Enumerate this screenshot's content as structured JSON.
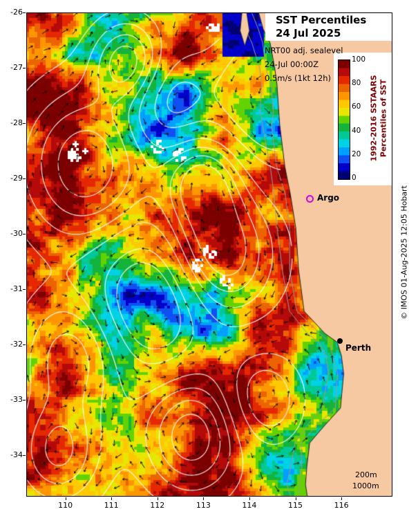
{
  "title": {
    "line1": "SST Percentiles",
    "line2": "24 Jul 2025"
  },
  "info": {
    "line1": "NRT00 adj. sealevel",
    "line2": "24-Jul 00:00Z",
    "line3": "0.5m/s (1kt 12h)"
  },
  "colorbar": {
    "ticks": [
      "100",
      "80",
      "60",
      "40",
      "20",
      "0"
    ],
    "label_line1": "1992-2016 SSTAARS",
    "label_line2": "Percentiles of SST",
    "palette": [
      "#000073",
      "#0000c8",
      "#1050f0",
      "#00a0ff",
      "#00d2e6",
      "#00c896",
      "#14b43c",
      "#64d200",
      "#e6e600",
      "#ffc800",
      "#ff9600",
      "#eb6400",
      "#e62800",
      "#b40a0a",
      "#7d0000"
    ]
  },
  "axes": {
    "x_ticks": [
      "110",
      "111",
      "112",
      "113",
      "114",
      "115",
      "116"
    ],
    "y_ticks": [
      "-26",
      "-27",
      "-28",
      "-29",
      "-30",
      "-31",
      "-32",
      "-33",
      "-34"
    ]
  },
  "markers": {
    "argo_label": "Argo",
    "perth_label": "Perth"
  },
  "depth": {
    "line1": "200m",
    "line2": "1000m"
  },
  "credit": "© IMOS 01-Aug-2025 12:05 Hobart",
  "map": {
    "lon_range": [
      109.15,
      117.11
    ],
    "lat_range": [
      -34.75,
      -26.0
    ],
    "land_color": "#f6c9a2",
    "isobath_color": "#9a9a9a",
    "isobath_offsets": [
      10,
      24
    ],
    "grid": {
      "lons": [
        109.15,
        109.87,
        110.6,
        111.32,
        112.04,
        112.77,
        113.49,
        114.21,
        114.94,
        115.66,
        116.38,
        117.11
      ],
      "lats": [
        -26.0,
        -26.73,
        -27.46,
        -28.19,
        -28.92,
        -29.65,
        -30.38,
        -31.1,
        -31.83,
        -32.56,
        -33.29,
        -34.02,
        -34.75
      ],
      "values": [
        [
          95,
          72,
          48,
          42,
          68,
          88,
          70,
          45,
          25,
          40,
          40,
          40
        ],
        [
          90,
          74,
          40,
          42,
          74,
          94,
          68,
          48,
          18,
          35,
          35,
          35
        ],
        [
          96,
          88,
          70,
          58,
          32,
          22,
          68,
          56,
          15,
          30,
          30,
          30
        ],
        [
          88,
          96,
          76,
          48,
          22,
          34,
          62,
          10,
          8,
          28,
          28,
          28
        ],
        [
          94,
          92,
          84,
          66,
          34,
          46,
          38,
          66,
          82,
          40,
          40,
          40
        ],
        [
          95,
          86,
          70,
          64,
          76,
          96,
          94,
          86,
          88,
          60,
          60,
          60
        ],
        [
          85,
          72,
          50,
          62,
          84,
          97,
          97,
          84,
          92,
          70,
          70,
          70
        ],
        [
          70,
          60,
          36,
          10,
          4,
          20,
          34,
          62,
          93,
          80,
          80,
          80
        ],
        [
          62,
          84,
          66,
          34,
          44,
          30,
          48,
          88,
          94,
          45,
          45,
          45
        ],
        [
          70,
          88,
          72,
          58,
          70,
          86,
          95,
          84,
          60,
          30,
          30,
          30
        ],
        [
          92,
          95,
          70,
          50,
          62,
          88,
          97,
          74,
          46,
          28,
          28,
          28
        ],
        [
          90,
          75,
          58,
          52,
          72,
          96,
          86,
          58,
          44,
          65,
          65,
          65
        ],
        [
          88,
          72,
          55,
          60,
          74,
          92,
          88,
          55,
          42,
          55,
          55,
          55
        ]
      ]
    },
    "coastline": [
      [
        114.2,
        -26.0
      ],
      [
        114.3,
        -26.3
      ],
      [
        114.45,
        -26.55
      ],
      [
        114.55,
        -27.0
      ],
      [
        114.6,
        -27.3
      ],
      [
        114.64,
        -27.8
      ],
      [
        114.66,
        -28.03
      ],
      [
        114.77,
        -28.78
      ],
      [
        114.89,
        -29.28
      ],
      [
        115.01,
        -29.9
      ],
      [
        115.07,
        -30.65
      ],
      [
        115.19,
        -31.4
      ],
      [
        115.64,
        -31.8
      ],
      [
        115.91,
        -31.96
      ],
      [
        116.0,
        -32.2
      ],
      [
        116.05,
        -32.53
      ],
      [
        115.98,
        -33.15
      ],
      [
        115.64,
        -33.46
      ],
      [
        115.31,
        -33.78
      ],
      [
        115.25,
        -34.2
      ],
      [
        115.22,
        -34.53
      ],
      [
        115.26,
        -34.75
      ]
    ],
    "bay_region": {
      "lon_min": 113.42,
      "lon_max": 114.32,
      "lat_south": -26.78
    },
    "bay_peninsula": [
      [
        113.84,
        -26.0
      ],
      [
        113.94,
        -26.0
      ],
      [
        114.0,
        -26.33
      ],
      [
        113.9,
        -26.6
      ],
      [
        113.8,
        -26.33
      ]
    ],
    "contour_bumps": [
      [
        111.35,
        -26.9,
        1.3,
        0.5
      ],
      [
        110.45,
        -28.75,
        1.35,
        0.95
      ],
      [
        113.0,
        -29.05,
        1.2,
        0.55
      ],
      [
        113.35,
        -30.35,
        1.45,
        0.8
      ],
      [
        110.15,
        -32.2,
        1.0,
        0.75
      ],
      [
        109.85,
        -33.95,
        1.15,
        0.65
      ],
      [
        112.75,
        -33.65,
        1.35,
        0.7
      ],
      [
        114.5,
        -27.5,
        -1.0,
        0.9
      ],
      [
        111.9,
        -31.2,
        -1.1,
        0.85
      ],
      [
        114.3,
        -33.0,
        -0.8,
        0.6
      ],
      [
        112.2,
        -27.6,
        -0.7,
        0.6
      ]
    ],
    "contour_levels": [
      -0.5,
      -0.25,
      0.2,
      0.5,
      0.8,
      1.1
    ],
    "gaps": [
      [
        111.95,
        -28.4
      ],
      [
        112.45,
        -28.55
      ],
      [
        113.5,
        -30.85
      ],
      [
        113.1,
        -30.3
      ],
      [
        110.15,
        -28.55
      ],
      [
        113.2,
        -26.25
      ],
      [
        112.9,
        -30.55
      ]
    ],
    "plus_markers": [
      [
        110.22,
        -28.38
      ],
      [
        110.42,
        -28.5
      ]
    ]
  }
}
